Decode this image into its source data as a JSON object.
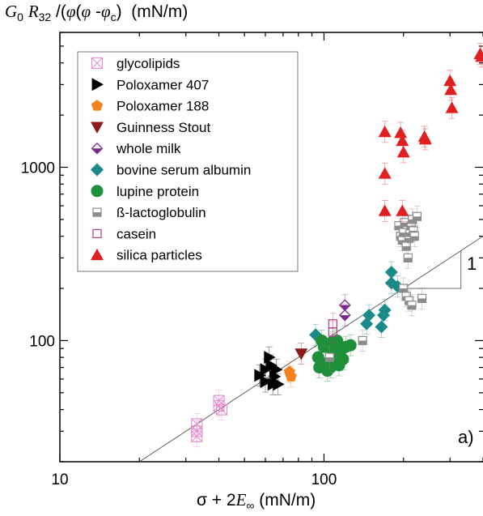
{
  "chart_data": {
    "type": "scatter",
    "title": "",
    "ylabel_text": "G0 R32 /(φ(φ-φc)  (mN/m)",
    "xlabel_text": "σ + 2E∞ (mN/m)",
    "panel_label": "a)",
    "slope_label": "1",
    "xscale": "log",
    "yscale": "log",
    "xlim": [
      10,
      400
    ],
    "ylim": [
      20,
      6000
    ],
    "x_ticks": [
      10,
      100
    ],
    "x_tick_labels": [
      "10",
      "100"
    ],
    "y_ticks": [
      100,
      1000
    ],
    "y_tick_labels": [
      "100",
      "1000"
    ],
    "grid": false,
    "legend_position": "top-left",
    "fit_line": {
      "slope": 1,
      "x_start": 20,
      "x_end": 400
    },
    "series": [
      {
        "name": "glycolipids",
        "marker": "xsquare",
        "color": "#e58fd0",
        "points": [
          [
            33,
            33
          ],
          [
            33,
            30
          ],
          [
            33,
            28
          ],
          [
            40,
            45
          ],
          [
            40,
            42
          ],
          [
            41,
            40
          ]
        ]
      },
      {
        "name": "Poloxamer 407",
        "marker": "triangle-right",
        "color": "#000000",
        "points": [
          [
            57,
            63
          ],
          [
            60,
            58
          ],
          [
            60,
            68
          ],
          [
            62,
            80
          ],
          [
            63,
            72
          ],
          [
            64,
            56
          ],
          [
            65,
            62
          ],
          [
            67,
            56
          ],
          [
            66,
            68
          ]
        ]
      },
      {
        "name": "Poloxamer 188",
        "marker": "pentagon",
        "color": "#f58220",
        "points": [
          [
            74,
            66
          ],
          [
            75,
            62
          ]
        ]
      },
      {
        "name": "Guinness Stout",
        "marker": "triangle-down",
        "color": "#8b1a1a",
        "points": [
          [
            82,
            84
          ]
        ]
      },
      {
        "name": "whole milk",
        "marker": "halfdiamond",
        "color": "#7a2a8c",
        "points": [
          [
            120,
            160
          ],
          [
            120,
            140
          ]
        ]
      },
      {
        "name": "bovine serum albumin",
        "marker": "diamond",
        "color": "#1b8a8a",
        "points": [
          [
            93,
            108
          ],
          [
            145,
            125
          ],
          [
            148,
            140
          ],
          [
            165,
            120
          ],
          [
            168,
            140
          ],
          [
            170,
            150
          ],
          [
            180,
            248
          ],
          [
            180,
            215
          ],
          [
            190,
            205
          ]
        ]
      },
      {
        "name": "lupine protein",
        "marker": "circle",
        "color": "#1f8f3a",
        "points": [
          [
            95,
            80
          ],
          [
            96,
            70
          ],
          [
            100,
            92
          ],
          [
            103,
            67
          ],
          [
            104,
            75
          ],
          [
            106,
            70
          ],
          [
            108,
            86
          ],
          [
            110,
            80
          ],
          [
            112,
            100
          ],
          [
            114,
            72
          ],
          [
            116,
            88
          ],
          [
            118,
            78
          ],
          [
            121,
            92
          ],
          [
            126,
            94
          ],
          [
            98,
            100
          ],
          [
            108,
            98
          ]
        ]
      },
      {
        "name": "ß-lactoglobulin",
        "marker": "halfsquare",
        "color": "#8c8c8c",
        "points": [
          [
            105,
            80
          ],
          [
            140,
            100
          ],
          [
            192,
            460
          ],
          [
            195,
            400
          ],
          [
            198,
            380
          ],
          [
            200,
            420
          ],
          [
            202,
            480
          ],
          [
            205,
            350
          ],
          [
            208,
            300
          ],
          [
            210,
            390
          ],
          [
            212,
            420
          ],
          [
            214,
            460
          ],
          [
            216,
            500
          ],
          [
            218,
            430
          ],
          [
            220,
            400
          ],
          [
            225,
            520
          ],
          [
            200,
            200
          ],
          [
            205,
            180
          ],
          [
            210,
            170
          ],
          [
            215,
            160
          ],
          [
            235,
            175
          ]
        ]
      },
      {
        "name": "casein",
        "marker": "square-open",
        "color": "#b04a8a",
        "points": [
          [
            108,
            125
          ],
          [
            108,
            112
          ]
        ]
      },
      {
        "name": "silica particles",
        "marker": "triangle-up",
        "color": "#e02020",
        "points": [
          [
            170,
            1600
          ],
          [
            170,
            920
          ],
          [
            170,
            560
          ],
          [
            195,
            1580
          ],
          [
            198,
            1420
          ],
          [
            200,
            1220
          ],
          [
            198,
            560
          ],
          [
            240,
            1500
          ],
          [
            242,
            1450
          ],
          [
            300,
            3150
          ],
          [
            302,
            2800
          ],
          [
            305,
            2200
          ],
          [
            390,
            4500
          ],
          [
            395,
            4350
          ]
        ]
      }
    ]
  }
}
